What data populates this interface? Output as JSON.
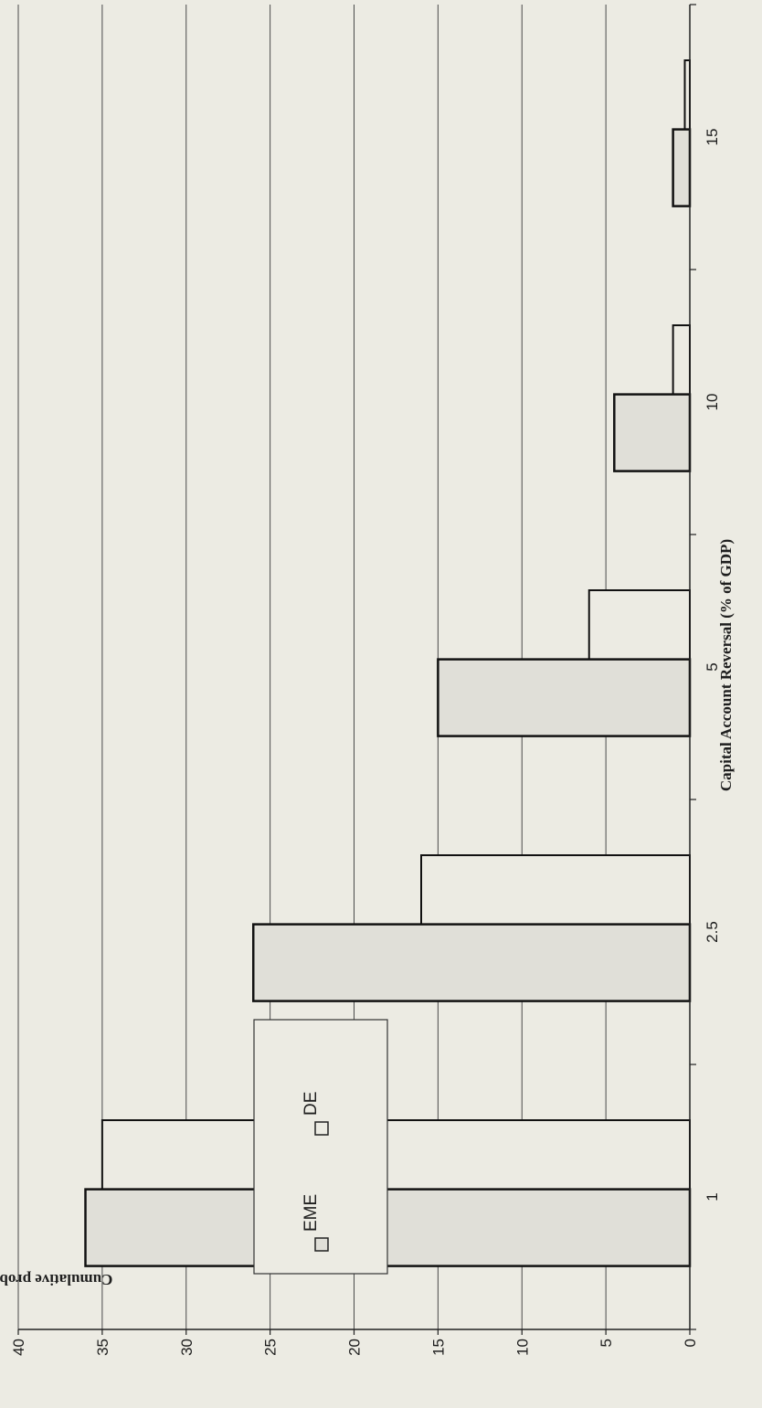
{
  "chart_data": {
    "type": "bar",
    "orientation": "rotated-90-clockwise",
    "xlabel": "Capital Account Reversal (% of GDP)",
    "ylabel": "Cumulative probability (%)",
    "categories": [
      "1",
      "2.5",
      "5",
      "10",
      "15"
    ],
    "series": [
      {
        "name": "EME",
        "values": [
          36,
          26,
          15,
          4.5,
          1
        ],
        "fill": "#e0dfd8"
      },
      {
        "name": "DE",
        "values": [
          35,
          16,
          6,
          1,
          0.3
        ],
        "fill": "#ecebe3"
      }
    ],
    "ylim": [
      0,
      40
    ],
    "yticks": [
      "0",
      "5",
      "10",
      "15",
      "20",
      "25",
      "30",
      "35",
      "40"
    ],
    "grid": true,
    "legend": {
      "position": "lower-left",
      "items": [
        "EME",
        "DE"
      ]
    }
  }
}
